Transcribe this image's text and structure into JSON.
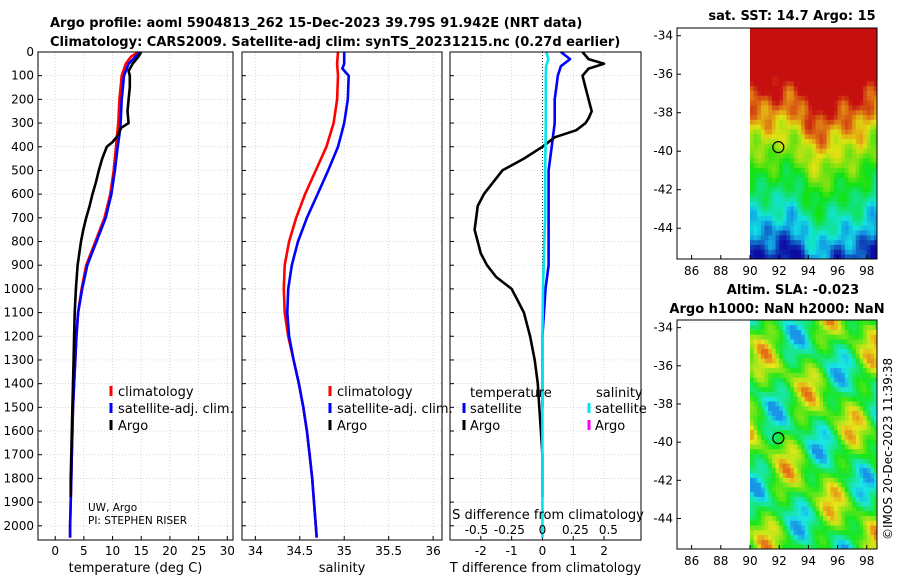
{
  "header": {
    "title_line1": "Argo profile: aoml 5904813_262 15-Dec-2023 39.79S 91.942E (NRT data)",
    "title_line2": "Climatology: CARS2009. Satellite-adj clim: synTS_20231215.nc (0.27d earlier)"
  },
  "timestamp": "©IMOS 20-Dec-2023 11:39:38",
  "credit": {
    "line1": "UW, Argo",
    "line2": "PI: STEPHEN RISER"
  },
  "colors": {
    "red": "#ff0000",
    "blue": "#0000ff",
    "black": "#000000",
    "cyan": "#00e5ee",
    "magenta": "#ff00ff",
    "grid": "#c8c8c8"
  },
  "chart_data": [
    {
      "id": "temperature",
      "type": "line",
      "xlabel": "temperature (deg C)",
      "xlim": [
        -3,
        31
      ],
      "xticks": [
        0,
        5,
        10,
        15,
        20,
        25,
        30
      ],
      "ylim": [
        2060,
        0
      ],
      "yticks": [
        0,
        100,
        200,
        300,
        400,
        500,
        600,
        700,
        800,
        900,
        1000,
        1100,
        1200,
        1300,
        1400,
        1500,
        1600,
        1700,
        1800,
        1900,
        2000
      ],
      "legend": [
        "climatology",
        "satellite-adj. clim.",
        "Argo"
      ],
      "series": [
        {
          "name": "climatology",
          "color": "red",
          "depth": [
            0,
            20,
            50,
            100,
            150,
            200,
            300,
            350,
            400,
            500,
            600,
            700,
            800,
            900,
            1000,
            1100,
            1200,
            1300,
            1400,
            1500,
            1600,
            1700,
            1800,
            1900,
            2000,
            2050
          ],
          "values": [
            14.5,
            13.2,
            12.3,
            11.6,
            11.4,
            11.2,
            11.0,
            10.8,
            10.6,
            10.2,
            9.6,
            8.6,
            7.0,
            5.4,
            4.6,
            4.0,
            3.7,
            3.5,
            3.3,
            3.1,
            3.0,
            2.9,
            2.8,
            2.7,
            2.6,
            2.6
          ]
        },
        {
          "name": "satellite-adj. clim.",
          "color": "blue",
          "depth": [
            0,
            20,
            50,
            100,
            150,
            200,
            300,
            350,
            400,
            500,
            600,
            700,
            800,
            900,
            1000,
            1100,
            1200,
            1300,
            1400,
            1500,
            1600,
            1700,
            1800,
            1900,
            2000,
            2050
          ],
          "values": [
            14.8,
            14.0,
            12.8,
            12.0,
            11.8,
            11.6,
            11.4,
            11.2,
            10.9,
            10.4,
            9.8,
            8.8,
            7.2,
            5.6,
            4.7,
            4.0,
            3.7,
            3.5,
            3.3,
            3.1,
            3.0,
            2.9,
            2.8,
            2.7,
            2.6,
            2.6
          ]
        },
        {
          "name": "Argo",
          "color": "black",
          "depth": [
            0,
            20,
            50,
            80,
            100,
            150,
            200,
            250,
            300,
            320,
            350,
            380,
            400,
            450,
            500,
            550,
            600,
            650,
            700,
            750,
            800,
            850,
            900,
            1000,
            1100,
            1200,
            1300,
            1400,
            1500,
            1600,
            1700,
            1800,
            1880
          ],
          "values": [
            15.0,
            14.5,
            13.5,
            12.8,
            13.0,
            13.0,
            12.8,
            12.6,
            12.8,
            11.5,
            11.0,
            10.0,
            9.0,
            8.2,
            7.6,
            7.1,
            6.5,
            6.0,
            5.4,
            4.9,
            4.5,
            4.2,
            3.9,
            3.6,
            3.4,
            3.3,
            3.2,
            3.1,
            3.0,
            2.9,
            2.8,
            2.7,
            2.7
          ]
        }
      ]
    },
    {
      "id": "salinity",
      "type": "line",
      "xlabel": "salinity",
      "xlim": [
        33.85,
        36.1
      ],
      "xticks": [
        34,
        34.5,
        35,
        35.5,
        36
      ],
      "xticklabels": [
        "34",
        "34.5",
        "35",
        "35.5",
        "36"
      ],
      "ylim": [
        2060,
        0
      ],
      "yticks": [
        0,
        100,
        200,
        300,
        400,
        500,
        600,
        700,
        800,
        900,
        1000,
        1100,
        1200,
        1300,
        1400,
        1500,
        1600,
        1700,
        1800,
        1900,
        2000
      ],
      "legend": [
        "climatology",
        "satellite-adj. clim.",
        "Argo"
      ],
      "series": [
        {
          "name": "climatology",
          "color": "red",
          "depth": [
            0,
            50,
            100,
            200,
            300,
            400,
            500,
            600,
            700,
            800,
            900,
            1000,
            1100,
            1200,
            1300,
            1400,
            1500,
            1600,
            1700,
            1800,
            1900,
            2000,
            2050
          ],
          "values": [
            34.93,
            34.92,
            34.93,
            34.92,
            34.88,
            34.8,
            34.68,
            34.56,
            34.46,
            34.38,
            34.33,
            34.32,
            34.33,
            34.37,
            34.43,
            34.49,
            34.54,
            34.58,
            34.61,
            34.64,
            34.66,
            34.68,
            34.69
          ]
        },
        {
          "name": "satellite-adj. clim.",
          "color": "blue",
          "depth": [
            0,
            50,
            70,
            100,
            200,
            300,
            400,
            500,
            600,
            700,
            800,
            900,
            1000,
            1100,
            1200,
            1300,
            1400,
            1500,
            1600,
            1700,
            1800,
            1900,
            2000,
            2050
          ],
          "values": [
            35.0,
            35.0,
            34.98,
            35.05,
            35.04,
            35.0,
            34.93,
            34.82,
            34.7,
            34.58,
            34.48,
            34.41,
            34.37,
            34.36,
            34.38,
            34.43,
            34.49,
            34.54,
            34.58,
            34.61,
            34.64,
            34.66,
            34.68,
            34.69
          ]
        }
      ]
    },
    {
      "id": "difference",
      "type": "line",
      "xlabel": "T difference from climatology",
      "xlabel_top": "S difference from climatology",
      "xlim": [
        -3,
        3.2
      ],
      "xticks": [
        -2,
        -1,
        0,
        1,
        2
      ],
      "xticklabels": [
        "-2",
        "-1",
        "0",
        "1",
        "2"
      ],
      "sticks": [
        -0.5,
        -0.25,
        0,
        0.25,
        0.5
      ],
      "sticklabels": [
        "-0.5",
        "-0.25",
        "0",
        "0.25",
        "0.5"
      ],
      "ylim": [
        2060,
        0
      ],
      "legend_temperature_title": "temperature",
      "legend_salinity_title": "salinity",
      "legend_temperature": [
        "satellite",
        "Argo"
      ],
      "legend_salinity": [
        "satellite",
        "Argo"
      ],
      "series": [
        {
          "name": "satellite temperature",
          "color": "blue",
          "depth": [
            0,
            30,
            60,
            100,
            150,
            200,
            300,
            400,
            500,
            600,
            700,
            800,
            900,
            1000,
            1100,
            1200,
            1300,
            1400,
            1500
          ],
          "values": [
            0.6,
            0.9,
            0.6,
            0.5,
            0.45,
            0.4,
            0.4,
            0.3,
            0.2,
            0.2,
            0.2,
            0.2,
            0.2,
            0.1,
            0.05,
            0.0,
            0.0,
            0.0,
            0.0
          ]
        },
        {
          "name": "Argo temperature",
          "color": "black",
          "depth": [
            0,
            30,
            50,
            70,
            100,
            150,
            200,
            250,
            280,
            300,
            330,
            360,
            400,
            450,
            500,
            550,
            600,
            650,
            700,
            750,
            800,
            850,
            900,
            950,
            1000,
            1050,
            1100,
            1150,
            1200,
            1300,
            1400,
            1500,
            1600,
            1700,
            1800,
            1880
          ],
          "values": [
            1.3,
            1.5,
            2.0,
            1.5,
            1.3,
            1.4,
            1.5,
            1.6,
            1.5,
            1.4,
            1.1,
            0.4,
            0.0,
            -0.6,
            -1.3,
            -1.6,
            -1.9,
            -2.1,
            -2.15,
            -2.2,
            -2.1,
            -2.0,
            -1.8,
            -1.5,
            -1.0,
            -0.8,
            -0.6,
            -0.5,
            -0.4,
            -0.25,
            -0.15,
            -0.1,
            -0.05,
            0.0,
            0.0,
            0.0
          ]
        },
        {
          "name": "satellite salinity",
          "color": "cyan",
          "depth": [
            0,
            30,
            60,
            100,
            150,
            200,
            300,
            400,
            500,
            600,
            700,
            800,
            900,
            1000,
            1100,
            1200,
            1300,
            1400,
            1500,
            1600,
            1700,
            1800,
            1900,
            2000,
            2050
          ],
          "values": [
            0.13,
            0.19,
            0.12,
            0.11,
            0.11,
            0.11,
            0.11,
            0.1,
            0.09,
            0.09,
            0.09,
            0.06,
            0.04,
            0.02,
            0.01,
            0.0,
            0.0,
            0.0,
            0.0,
            0.0,
            0.0,
            0.0,
            0.0,
            0.0,
            0.0
          ]
        }
      ]
    }
  ],
  "maps": [
    {
      "id": "sst-map",
      "title": "sat. SST: 14.7  Argo: 15",
      "xlim": [
        85,
        98.7
      ],
      "ylim": [
        -45.6,
        -33.6
      ],
      "xticks": [
        86,
        88,
        90,
        92,
        94,
        96,
        98
      ],
      "yticks": [
        -34,
        -36,
        -38,
        -40,
        -42,
        -44
      ],
      "data_lon_range": [
        90,
        98.7
      ],
      "marker": {
        "lon": 91.94,
        "lat": -39.79
      }
    },
    {
      "id": "sla-map",
      "title": "Altim. SLA: -0.023",
      "subtitle": "Argo h1000: NaN h2000: NaN",
      "xlim": [
        85,
        98.7
      ],
      "ylim": [
        -45.6,
        -33.6
      ],
      "xticks": [
        86,
        88,
        90,
        92,
        94,
        96,
        98
      ],
      "yticks": [
        -34,
        -36,
        -38,
        -40,
        -42,
        -44
      ],
      "data_lon_range": [
        90,
        98.7
      ],
      "marker": {
        "lon": 91.94,
        "lat": -39.79
      }
    }
  ]
}
